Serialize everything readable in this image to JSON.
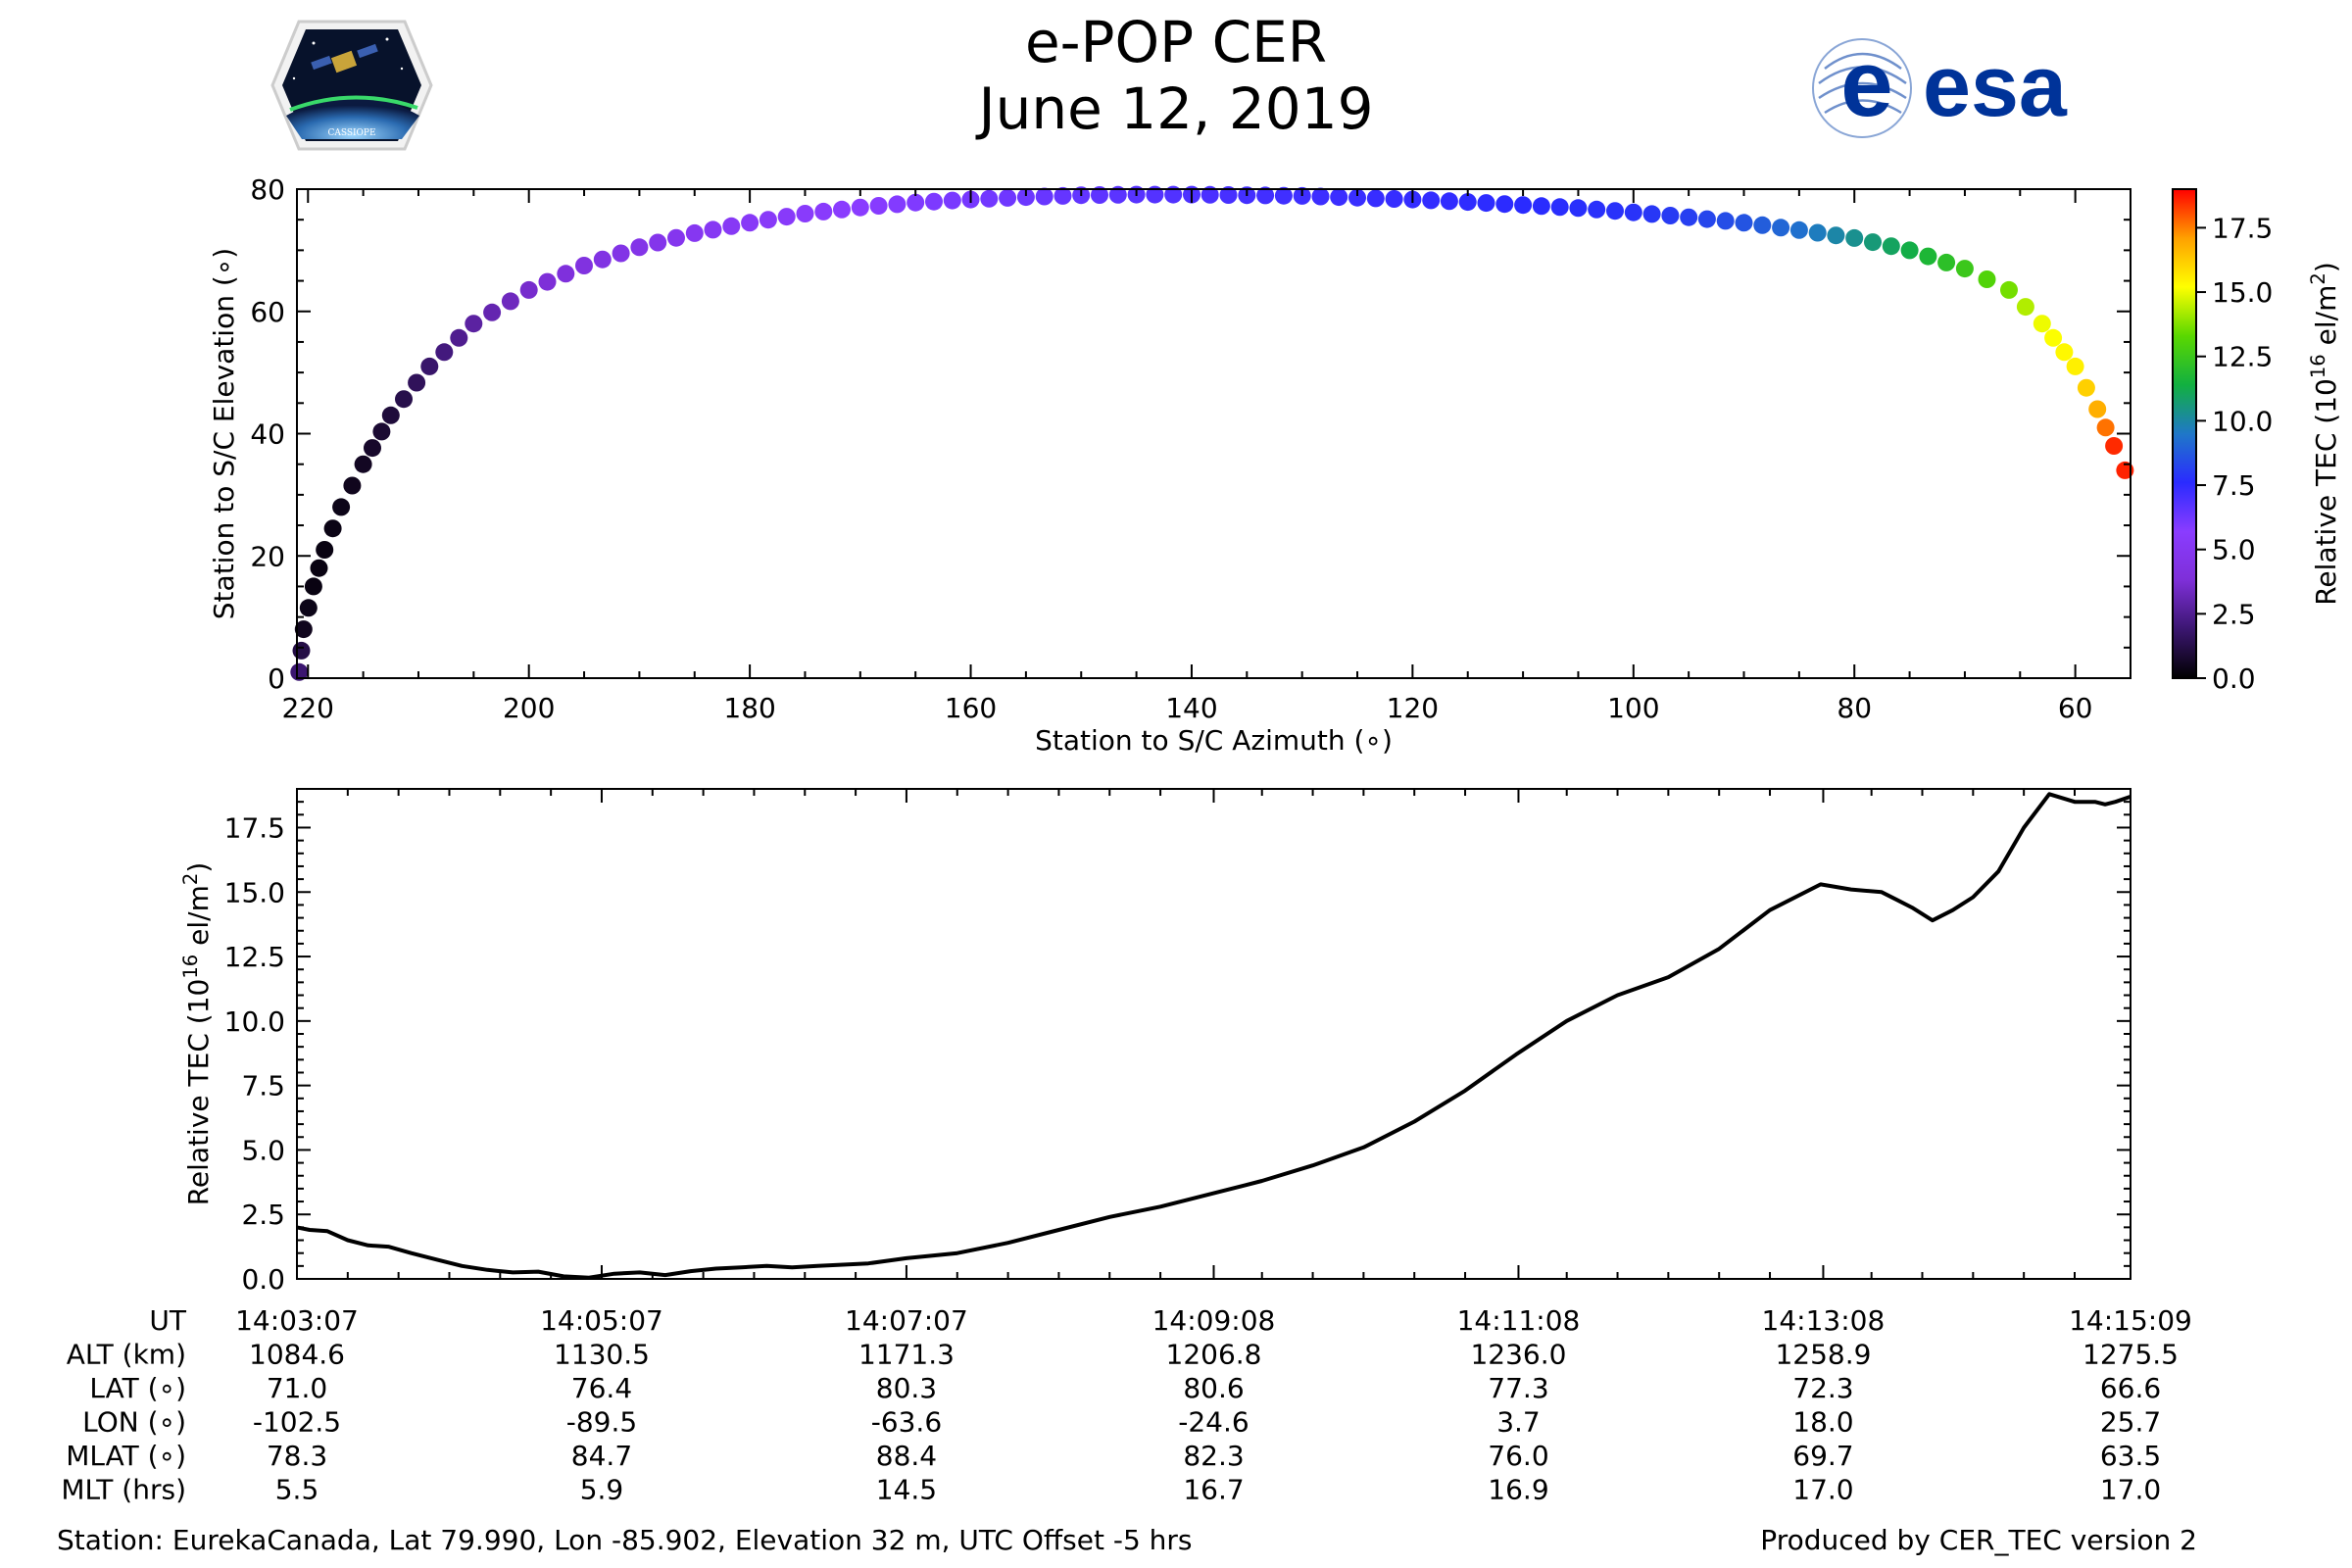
{
  "header": {
    "title": "e-POP CER",
    "date": "June 12, 2019",
    "left_logo_text": "CASSIOPE",
    "right_logo_text": "esa"
  },
  "footer": {
    "station": "Station: EurekaCanada, Lat 79.990, Lon -85.902, Elevation 32 m, UTC Offset -5 hrs",
    "produced": "Produced by CER_TEC version 2"
  },
  "colors": {
    "line": "#000000",
    "esa_blue": "#003399",
    "colormap": [
      "#000000",
      "#3b1670",
      "#7e2fd8",
      "#8a3cff",
      "#2a2bff",
      "#1f78c8",
      "#12b040",
      "#5ad800",
      "#ffff00",
      "#ffa000",
      "#ff0000"
    ]
  },
  "chart_data": [
    {
      "type": "scatter",
      "xlabel": "Station to S/C Azimuth (∘)",
      "ylabel": "Station to S/C Elevation (∘)",
      "xlim": [
        221,
        55
      ],
      "ylim": [
        0,
        80
      ],
      "xticks": [
        220,
        200,
        180,
        160,
        140,
        120,
        100,
        80,
        60
      ],
      "yticks": [
        0,
        20,
        40,
        60,
        80
      ],
      "colorbar": {
        "label": "Relative TEC (10^16 el/m^2)",
        "label_base": "Relative TEC (10",
        "label_sup": "16",
        "label_unit": " el/m",
        "label_sup2": "2",
        "label_end": ")",
        "range": [
          0,
          19
        ],
        "ticks": [
          "0.0",
          "2.5",
          "5.0",
          "7.5",
          "10.0",
          "12.5",
          "15.0",
          "17.5"
        ],
        "colormap": "gist_ncar-like"
      },
      "points": [
        {
          "az": 220.8,
          "el": 1,
          "tec": 1.9
        },
        {
          "az": 220.4,
          "el": 8,
          "tec": 0.5
        },
        {
          "az": 219.5,
          "el": 15,
          "tec": 0.3
        },
        {
          "az": 218.5,
          "el": 21,
          "tec": 0.3
        },
        {
          "az": 217.0,
          "el": 28,
          "tec": 0.4
        },
        {
          "az": 215.0,
          "el": 35,
          "tec": 0.6
        },
        {
          "az": 212.5,
          "el": 43,
          "tec": 1.0
        },
        {
          "az": 209.0,
          "el": 51,
          "tec": 1.8
        },
        {
          "az": 205.0,
          "el": 58,
          "tec": 2.8
        },
        {
          "az": 200.0,
          "el": 63.5,
          "tec": 3.6
        },
        {
          "az": 195.0,
          "el": 67.5,
          "tec": 4.2
        },
        {
          "az": 190.0,
          "el": 70.5,
          "tec": 4.6
        },
        {
          "az": 185.0,
          "el": 72.8,
          "tec": 5.0
        },
        {
          "az": 180.0,
          "el": 74.5,
          "tec": 5.3
        },
        {
          "az": 175.0,
          "el": 76.0,
          "tec": 5.5
        },
        {
          "az": 170.0,
          "el": 77.0,
          "tec": 5.7
        },
        {
          "az": 165.0,
          "el": 77.8,
          "tec": 5.9
        },
        {
          "az": 160.0,
          "el": 78.3,
          "tec": 6.1
        },
        {
          "az": 155.0,
          "el": 78.7,
          "tec": 6.3
        },
        {
          "az": 150.0,
          "el": 79.0,
          "tec": 6.5
        },
        {
          "az": 145.0,
          "el": 79.1,
          "tec": 6.7
        },
        {
          "az": 140.0,
          "el": 79.1,
          "tec": 6.9
        },
        {
          "az": 135.0,
          "el": 79.0,
          "tec": 7.1
        },
        {
          "az": 130.0,
          "el": 78.9,
          "tec": 7.2
        },
        {
          "az": 125.0,
          "el": 78.6,
          "tec": 7.3
        },
        {
          "az": 120.0,
          "el": 78.3,
          "tec": 7.4
        },
        {
          "az": 115.0,
          "el": 77.9,
          "tec": 7.5
        },
        {
          "az": 110.0,
          "el": 77.4,
          "tec": 7.6
        },
        {
          "az": 105.0,
          "el": 76.9,
          "tec": 7.7
        },
        {
          "az": 100.0,
          "el": 76.2,
          "tec": 7.8
        },
        {
          "az": 95.0,
          "el": 75.4,
          "tec": 8.1
        },
        {
          "az": 90.0,
          "el": 74.5,
          "tec": 8.6
        },
        {
          "az": 85.0,
          "el": 73.3,
          "tec": 9.3
        },
        {
          "az": 80.0,
          "el": 72.0,
          "tec": 10.3
        },
        {
          "az": 75.0,
          "el": 70.0,
          "tec": 11.3
        },
        {
          "az": 70.0,
          "el": 67.0,
          "tec": 12.5
        },
        {
          "az": 66.0,
          "el": 63.5,
          "tec": 13.6
        },
        {
          "az": 63.0,
          "el": 58.0,
          "tec": 15.0
        },
        {
          "az": 60.0,
          "el": 51.0,
          "tec": 15.5
        },
        {
          "az": 58.0,
          "el": 44.0,
          "tec": 16.8
        },
        {
          "az": 56.5,
          "el": 38.0,
          "tec": 18.5
        },
        {
          "az": 55.5,
          "el": 34.0,
          "tec": 18.6
        }
      ]
    },
    {
      "type": "line",
      "xlabel": "",
      "ylabel": "Relative TEC (10^16 el/m^2)",
      "ylabel_base": "Relative TEC (10",
      "ylabel_sup": "16",
      "ylabel_unit": " el/m",
      "ylabel_sup2": "2",
      "ylabel_end": ")",
      "xlim": [
        0,
        722
      ],
      "ylim": [
        0,
        19
      ],
      "x_unit": "seconds after 14:03:07 UT",
      "yticks": [
        "0.0",
        "2.5",
        "5.0",
        "7.5",
        "10.0",
        "12.5",
        "15.0",
        "17.5"
      ],
      "series": [
        {
          "x": [
            0,
            5,
            12,
            20,
            28,
            36,
            45,
            55,
            65,
            75,
            85,
            95,
            105,
            115,
            125,
            135,
            145,
            155,
            165,
            175,
            185,
            195,
            205,
            215,
            225,
            240,
            260,
            280,
            300,
            320,
            340,
            360,
            380,
            400,
            420,
            440,
            460,
            480,
            500,
            520,
            540,
            560,
            580,
            600,
            612,
            624,
            630,
            636,
            644,
            652,
            660,
            670,
            680,
            690,
            700,
            708,
            712,
            716,
            722
          ],
          "y": [
            2.0,
            1.9,
            1.85,
            1.5,
            1.3,
            1.25,
            1.0,
            0.75,
            0.5,
            0.35,
            0.25,
            0.28,
            0.1,
            0.05,
            0.2,
            0.25,
            0.15,
            0.3,
            0.4,
            0.45,
            0.5,
            0.45,
            0.5,
            0.55,
            0.6,
            0.8,
            1.0,
            1.4,
            1.9,
            2.4,
            2.8,
            3.3,
            3.8,
            4.4,
            5.1,
            6.1,
            7.3,
            8.7,
            10.0,
            11.0,
            11.7,
            12.8,
            14.3,
            15.3,
            15.1,
            15.0,
            14.7,
            14.4,
            13.9,
            14.3,
            14.8,
            15.8,
            17.5,
            18.8,
            18.5,
            18.5,
            18.4,
            18.5,
            18.7
          ]
        }
      ],
      "table": {
        "row_labels": [
          "UT",
          "ALT (km)",
          "LAT (∘)",
          "LON (∘)",
          "MLAT (∘)",
          "MLT (hrs)"
        ],
        "columns": [
          {
            "x": 0,
            "values": [
              "14:03:07",
              "1084.6",
              "71.0",
              "-102.5",
              "78.3",
              "5.5"
            ]
          },
          {
            "x": 120,
            "values": [
              "14:05:07",
              "1130.5",
              "76.4",
              "-89.5",
              "84.7",
              "5.9"
            ]
          },
          {
            "x": 240,
            "values": [
              "14:07:07",
              "1171.3",
              "80.3",
              "-63.6",
              "88.4",
              "14.5"
            ]
          },
          {
            "x": 361,
            "values": [
              "14:09:08",
              "1206.8",
              "80.6",
              "-24.6",
              "82.3",
              "16.7"
            ]
          },
          {
            "x": 481,
            "values": [
              "14:11:08",
              "1236.0",
              "77.3",
              "3.7",
              "76.0",
              "16.9"
            ]
          },
          {
            "x": 601,
            "values": [
              "14:13:08",
              "1258.9",
              "72.3",
              "18.0",
              "69.7",
              "17.0"
            ]
          },
          {
            "x": 722,
            "values": [
              "14:15:09",
              "1275.5",
              "66.6",
              "25.7",
              "63.5",
              "17.0"
            ]
          }
        ]
      }
    }
  ]
}
